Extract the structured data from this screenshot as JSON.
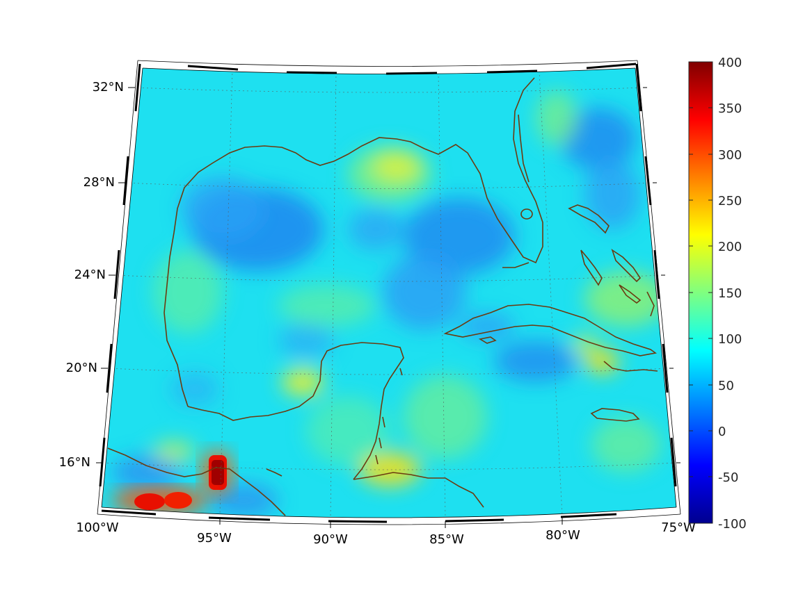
{
  "map": {
    "lat_labels": [
      "32°N",
      "28°N",
      "24°N",
      "20°N",
      "16°N"
    ],
    "lon_labels": [
      "100°W",
      "95°W",
      "90°W",
      "85°W",
      "80°W",
      "75°W"
    ],
    "region": "Gulf of Mexico / Caribbean",
    "lon_range": [
      -100,
      -75
    ],
    "lat_range": [
      14,
      33
    ],
    "grid": "dotted",
    "coastline_color": "#6b3a10"
  },
  "colorbar": {
    "ticks": [
      "400",
      "350",
      "300",
      "250",
      "200",
      "150",
      "100",
      "50",
      "0",
      "-50",
      "-100"
    ],
    "min": -100,
    "max": 400,
    "colormap": "jet"
  },
  "chart_data": {
    "type": "heatmap",
    "xlabel": "",
    "ylabel": "",
    "xlim": [
      -100,
      -75
    ],
    "ylim": [
      14,
      33
    ],
    "value_range": [
      -100,
      400
    ],
    "background_level": 110,
    "features": [
      {
        "lon": -94.8,
        "lat": 16.2,
        "value": 400
      },
      {
        "lon": -96.5,
        "lat": 14.5,
        "value": 350
      },
      {
        "lon": -98.0,
        "lat": 14.5,
        "value": 320
      },
      {
        "lon": -87.0,
        "lat": 16.0,
        "value": 190
      },
      {
        "lon": -87.5,
        "lat": 28.8,
        "value": 170
      },
      {
        "lon": -77.5,
        "lat": 18.5,
        "value": 185
      },
      {
        "lon": -92.0,
        "lat": 19.5,
        "value": 190
      },
      {
        "lon": -92.5,
        "lat": 25.5,
        "value": 50
      },
      {
        "lon": -84.0,
        "lat": 25.0,
        "value": 55
      },
      {
        "lon": -78.0,
        "lat": 28.5,
        "value": 60
      }
    ]
  }
}
